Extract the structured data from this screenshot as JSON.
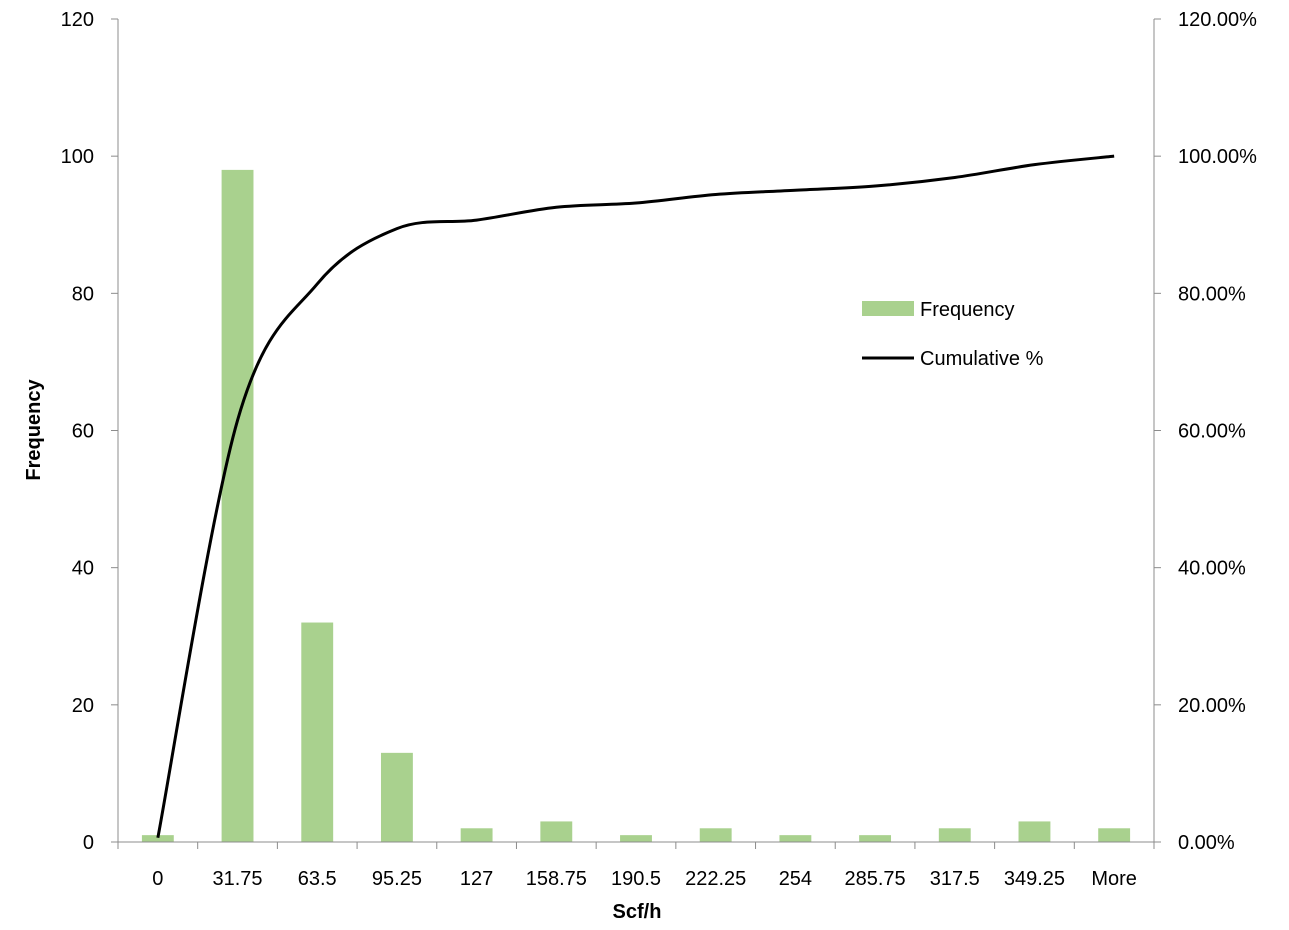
{
  "chart_data": {
    "type": "bar",
    "categories": [
      "0",
      "31.75",
      "63.5",
      "95.25",
      "127",
      "158.75",
      "190.5",
      "222.25",
      "254",
      "285.75",
      "317.5",
      "349.25",
      "More"
    ],
    "series": [
      {
        "name": "Frequency",
        "type": "bar",
        "axis": "left",
        "color": "#a9d18e",
        "values": [
          1,
          98,
          32,
          13,
          2,
          3,
          1,
          2,
          1,
          1,
          2,
          3,
          2
        ]
      },
      {
        "name": "Cumulative %",
        "type": "line",
        "axis": "right",
        "color": "#000000",
        "values": [
          0.62,
          61.49,
          81.37,
          89.44,
          90.68,
          92.55,
          93.17,
          94.41,
          95.03,
          95.65,
          96.89,
          98.76,
          100.0
        ]
      }
    ],
    "xlabel": "Scf/h",
    "ylabel": "Frequency",
    "ylabel_right": "",
    "ylim": [
      0,
      120
    ],
    "yticks": [
      0,
      20,
      40,
      60,
      80,
      100,
      120
    ],
    "ylim_right": [
      0,
      120
    ],
    "yticks_right": [
      "0.00%",
      "20.00%",
      "40.00%",
      "60.00%",
      "80.00%",
      "100.00%",
      "120.00%"
    ],
    "grid": false,
    "legend_position": "right-center"
  }
}
